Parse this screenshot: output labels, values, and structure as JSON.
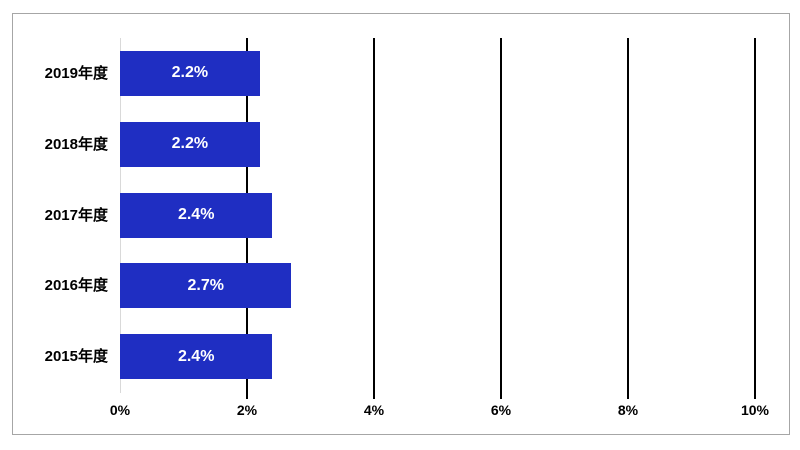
{
  "chart_data": {
    "type": "bar",
    "orientation": "horizontal",
    "title": "",
    "categories": [
      "2019年度",
      "2018年度",
      "2017年度",
      "2016年度",
      "2015年度"
    ],
    "values": [
      2.2,
      2.2,
      2.4,
      2.7,
      2.4
    ],
    "value_labels": [
      "2.2%",
      "2.2%",
      "2.4%",
      "2.7%",
      "2.4%"
    ],
    "x_ticks": [
      "0%",
      "2%",
      "4%",
      "6%",
      "8%",
      "10%"
    ],
    "x_tick_values": [
      0,
      2,
      4,
      6,
      8,
      10
    ],
    "xlim": [
      0,
      10
    ],
    "grid": true,
    "legend": false
  },
  "colors": {
    "bar": "#1f2ec2",
    "bar_value_text": "#ffffff",
    "axis_text": "#000000",
    "gridline": "#000000",
    "zero_line": "#d9d9d9",
    "frame_border": "#a6a6a6",
    "background": "#ffffff"
  }
}
